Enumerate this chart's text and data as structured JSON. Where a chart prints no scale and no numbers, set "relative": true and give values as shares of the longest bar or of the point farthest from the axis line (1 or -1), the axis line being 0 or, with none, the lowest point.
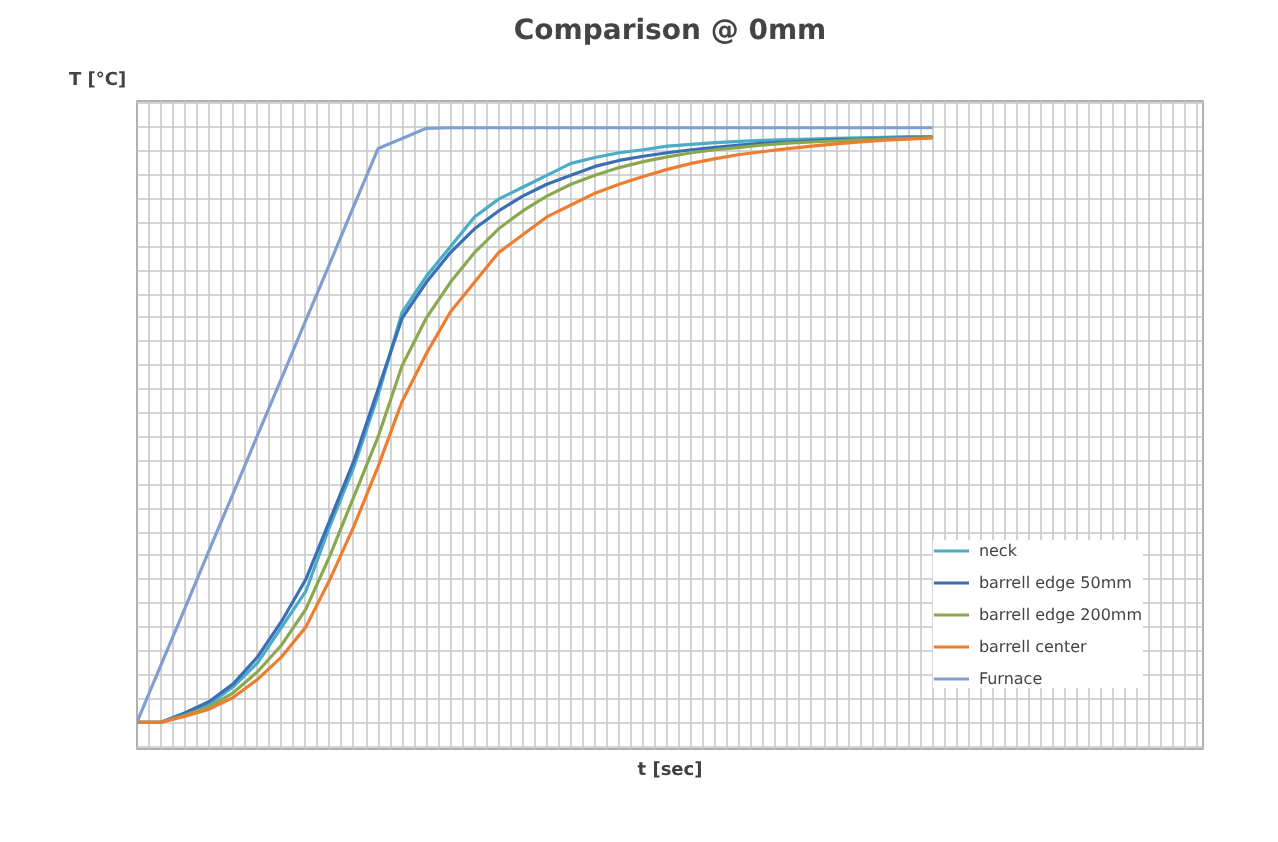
{
  "chart_data": {
    "type": "line",
    "title": "Comparison @ 0mm",
    "xlabel": "t [sec]",
    "ylabel": "T [°C]",
    "relative": true,
    "grid": true,
    "legend": "bottom right",
    "marker": "none",
    "line_style": "solid",
    "categories": [
      null,
      null,
      null,
      null,
      null,
      null,
      null,
      null,
      null,
      null,
      null,
      null,
      null,
      null,
      null,
      null,
      null,
      null,
      null,
      null,
      null,
      null,
      null,
      null,
      null,
      null,
      null,
      null,
      null,
      null,
      null,
      null,
      null,
      null
    ],
    "series": [
      {
        "name": "neck",
        "color": "#4bacc6",
        "values": [
          0,
          0,
          0.014,
          0.03,
          0.06,
          0.1,
          0.16,
          0.22,
          0.33,
          0.43,
          0.55,
          0.69,
          0.75,
          0.8,
          0.85,
          0.88,
          0.9,
          0.92,
          0.94,
          0.95,
          0.958,
          0.963,
          0.969,
          0.972,
          0.975,
          0.977,
          0.979,
          0.98,
          0.981,
          0.982,
          0.983,
          0.984,
          0.985,
          0.985
        ]
      },
      {
        "name": "barrell edge 50mm",
        "color": "#3a6fb5",
        "values": [
          0,
          0,
          0.016,
          0.035,
          0.065,
          0.11,
          0.17,
          0.24,
          0.34,
          0.44,
          0.56,
          0.68,
          0.74,
          0.79,
          0.83,
          0.86,
          0.885,
          0.905,
          0.92,
          0.935,
          0.945,
          0.952,
          0.958,
          0.963,
          0.967,
          0.971,
          0.974,
          0.976,
          0.978,
          0.98,
          0.981,
          0.982,
          0.983,
          0.984
        ]
      },
      {
        "name": "barrell edge 200mm",
        "color": "#8aa850",
        "values": [
          0,
          0,
          0.012,
          0.026,
          0.05,
          0.085,
          0.13,
          0.19,
          0.28,
          0.38,
          0.48,
          0.6,
          0.68,
          0.74,
          0.79,
          0.83,
          0.86,
          0.885,
          0.905,
          0.92,
          0.933,
          0.943,
          0.951,
          0.958,
          0.963,
          0.967,
          0.971,
          0.974,
          0.976,
          0.978,
          0.98,
          0.981,
          0.982,
          0.983
        ]
      },
      {
        "name": "barrell center",
        "color": "#ed7d31",
        "values": [
          0,
          0,
          0.01,
          0.022,
          0.042,
          0.072,
          0.11,
          0.16,
          0.24,
          0.33,
          0.43,
          0.54,
          0.62,
          0.69,
          0.74,
          0.79,
          0.82,
          0.85,
          0.87,
          0.89,
          0.905,
          0.918,
          0.93,
          0.94,
          0.948,
          0.955,
          0.96,
          0.965,
          0.969,
          0.973,
          0.976,
          0.979,
          0.981,
          0.983
        ]
      },
      {
        "name": "Furnace",
        "color": "#7f9fd0",
        "values": [
          0,
          0.097,
          0.193,
          0.29,
          0.386,
          0.483,
          0.579,
          0.676,
          0.772,
          0.869,
          0.965,
          0.982,
          0.999,
          1,
          1,
          1,
          1,
          1,
          1,
          1,
          1,
          1,
          1,
          1,
          1,
          1,
          1,
          1,
          1,
          1,
          1,
          1,
          1,
          1
        ]
      }
    ]
  }
}
